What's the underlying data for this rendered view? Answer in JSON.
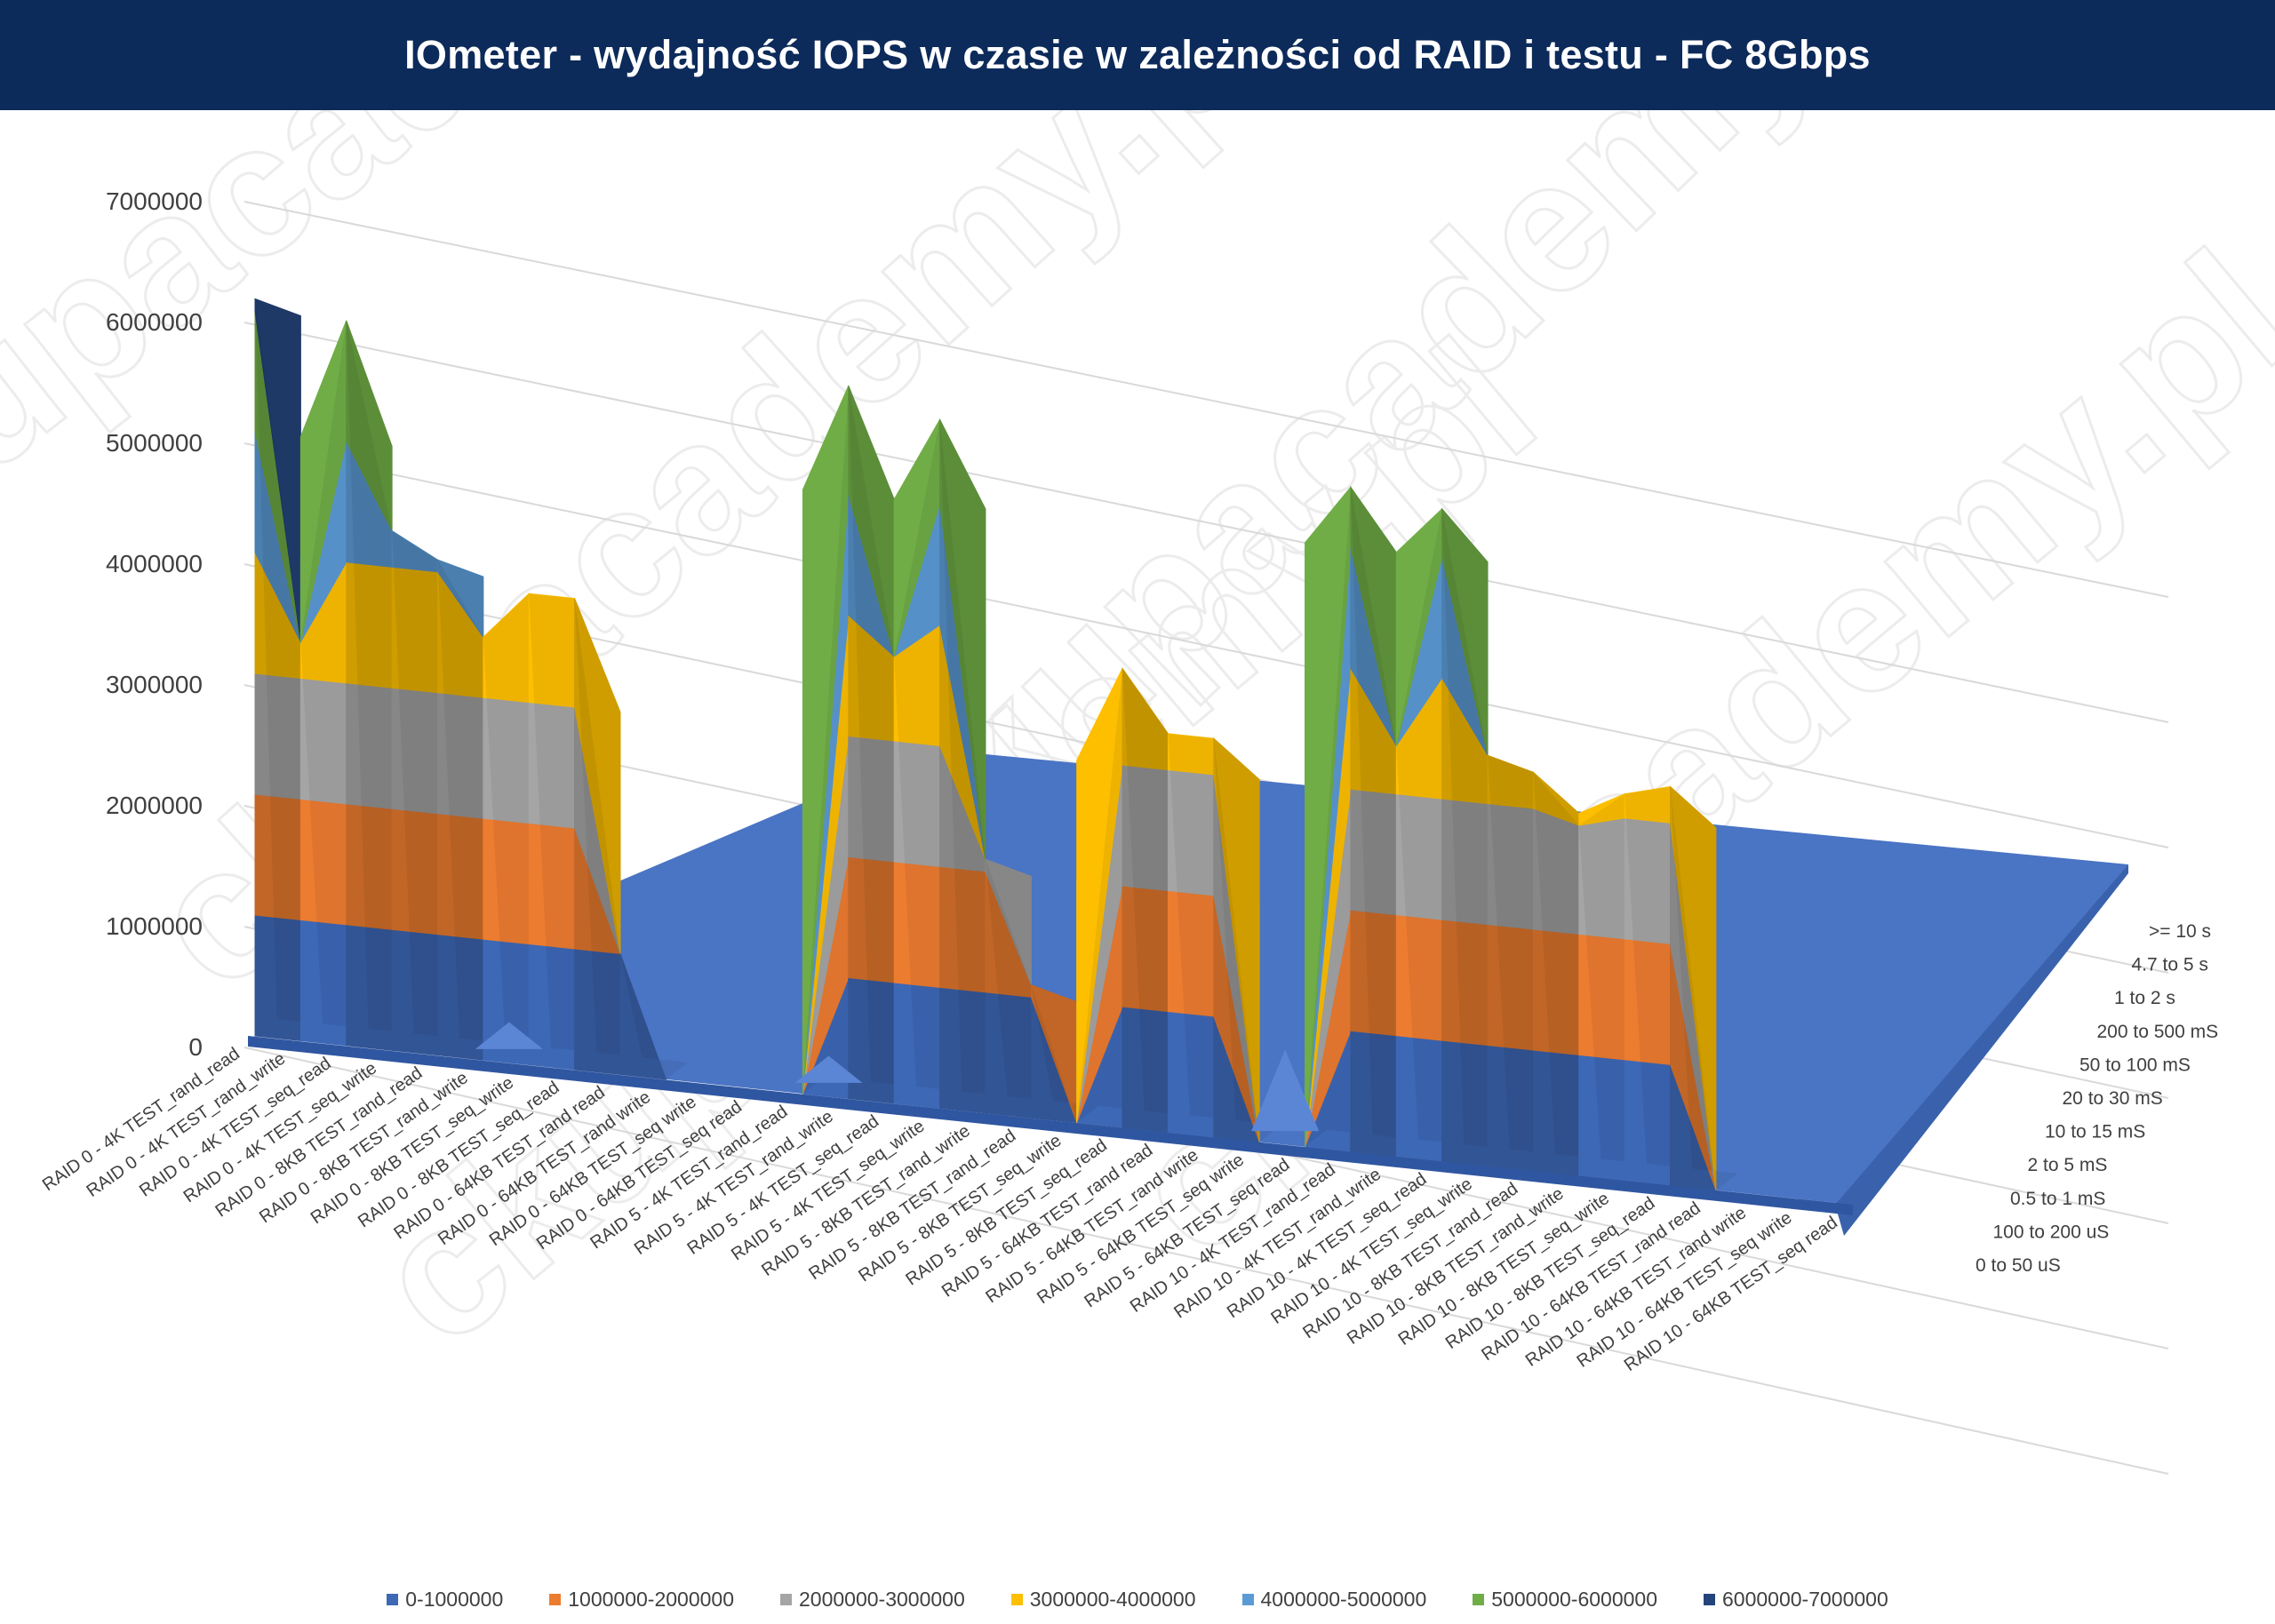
{
  "title": "IOmeter - wydajność IOPS w czasie w zależności od RAID i testu - FC 8Gbps",
  "chart_data": {
    "type": "3d-surface",
    "title": "IOmeter - wydajność IOPS w czasie w zależności od RAID i testu - FC 8Gbps",
    "z_axis": {
      "ticks": [
        "0",
        "1000000",
        "2000000",
        "3000000",
        "4000000",
        "5000000",
        "6000000",
        "7000000"
      ],
      "range": [
        0,
        7000000
      ]
    },
    "categories": [
      "RAID 0 - 4K TEST_rand_read",
      "RAID 0 - 4K TEST_rand_write",
      "RAID 0 - 4K TEST_seq_read",
      "RAID 0 - 4K TEST_seq_write",
      "RAID 0 - 8KB TEST_rand_read",
      "RAID 0 - 8KB TEST_rand_write",
      "RAID 0 - 8KB TEST_seq_write",
      "RAID 0 - 8KB TEST_seq_read",
      "RAID 0 - 64KB TEST_rand read",
      "RAID 0 - 64KB TEST_rand write",
      "RAID 0 - 64KB TEST_seq write",
      "RAID 0 - 64KB TEST_seq read",
      "RAID 5 - 4K TEST_rand_read",
      "RAID 5 - 4K TEST_rand_write",
      "RAID 5 - 4K TEST_seq_read",
      "RAID 5 - 4K TEST_seq_write",
      "RAID 5 - 8KB TEST_rand_write",
      "RAID 5 - 8KB TEST_rand_read",
      "RAID 5 - 8KB TEST_seq_write",
      "RAID 5 - 8KB TEST_seq_read",
      "RAID 5 - 64KB TEST_rand read",
      "RAID 5 - 64KB TEST_rand write",
      "RAID 5 - 64KB TEST_seq write",
      "RAID 5 - 64KB TEST_seq read",
      "RAID 10 - 4K TEST_rand_read",
      "RAID 10 - 4K TEST_rand_write",
      "RAID 10 - 4K TEST_seq_read",
      "RAID 10 - 4K TEST_seq_write",
      "RAID 10 - 8KB TEST_rand_read",
      "RAID 10 - 8KB TEST_rand_write",
      "RAID 10 - 8KB TEST_seq_write",
      "RAID 10 - 8KB TEST_seq_read",
      "RAID 10 - 64KB TEST_rand read",
      "RAID 10 - 64KB TEST_rand write",
      "RAID 10 - 64KB TEST_seq write",
      "RAID 10 - 64KB TEST_seq read"
    ],
    "series_axis": [
      "0 to 50 uS",
      "100 to 200 uS",
      "0.5 to 1 mS",
      "2 to 5 mS",
      "10 to 15 mS",
      "20 to 30 mS",
      "50 to 100 mS",
      "200 to 500 mS",
      "1 to 2 s",
      "4.7 to 5 s",
      ">= 10 s"
    ],
    "front_row_values": [
      6100000,
      3300000,
      6000000,
      4300000,
      4100000,
      3500000,
      3900000,
      3900000,
      1000000,
      0,
      0,
      0,
      0,
      5900000,
      3700000,
      5700000,
      2100000,
      1100000,
      0,
      3800000,
      3300000,
      3300000,
      0,
      0,
      5500000,
      3400000,
      5400000,
      3400000,
      3300000,
      2900000,
      3200000,
      3300000,
      0,
      0,
      0,
      0
    ],
    "second_row_values": [
      0,
      0,
      0,
      0,
      0,
      150000,
      0,
      0,
      0,
      0,
      0,
      0,
      150000,
      0,
      0,
      0,
      0,
      0,
      0,
      0,
      0,
      0,
      600000,
      0,
      0,
      0,
      0,
      0,
      0,
      0,
      0,
      0,
      0,
      0,
      0,
      0
    ],
    "color_bands": [
      {
        "name": "0-1000000",
        "color": "#3d68b6",
        "min": 0,
        "max": 1000000
      },
      {
        "name": "1000000-2000000",
        "color": "#ec7c30",
        "min": 1000000,
        "max": 2000000
      },
      {
        "name": "2000000-3000000",
        "color": "#a5a5a5",
        "min": 2000000,
        "max": 3000000
      },
      {
        "name": "3000000-4000000",
        "color": "#fdbf00",
        "min": 3000000,
        "max": 4000000
      },
      {
        "name": "4000000-5000000",
        "color": "#5b9bd5",
        "min": 4000000,
        "max": 5000000
      },
      {
        "name": "5000000-6000000",
        "color": "#70ad47",
        "min": 5000000,
        "max": 6000000
      },
      {
        "name": "6000000-7000000",
        "color": "#24457c",
        "min": 6000000,
        "max": 7000000
      }
    ],
    "legend_position": "bottom",
    "grid": true
  },
  "watermark": "ckupacademy.pl"
}
